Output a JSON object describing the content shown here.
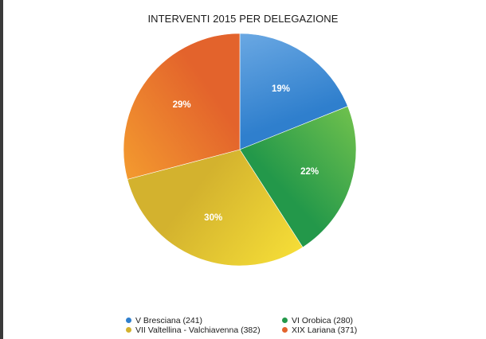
{
  "chart_data": {
    "type": "pie",
    "title": "INTERVENTI 2015 PER DELEGAZIONE",
    "slices": [
      {
        "name": "V Bresciana (241)",
        "value": 241,
        "percent_label": "19%",
        "color": "#2f7fcd",
        "color_light": "#6aa8e3"
      },
      {
        "name": "VI Orobica (280)",
        "value": 280,
        "percent_label": "22%",
        "color": "#23984a",
        "color_light": "#6ec04d"
      },
      {
        "name": "VII Valtellina - Valchiavenna (382)",
        "value": 382,
        "percent_label": "30%",
        "color": "#d3b22e",
        "color_light": "#f5dd37"
      },
      {
        "name": "XIX Lariana (371)",
        "value": 371,
        "percent_label": "29%",
        "color": "#e3632c",
        "color_light": "#f39a2f"
      }
    ],
    "start_angle_deg": 0,
    "direction": "clockwise",
    "legend_position": "bottom"
  }
}
